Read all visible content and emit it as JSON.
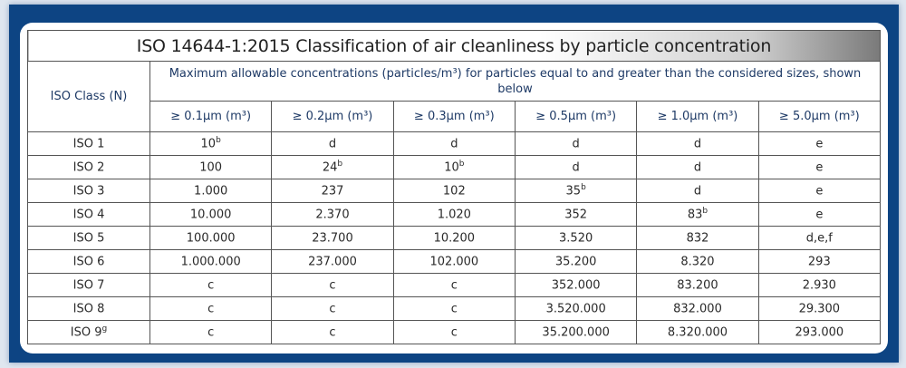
{
  "title": "ISO 14644-1:2015 Classification of air cleanliness by particle concentration",
  "class_header": "ISO Class (N)",
  "description": "Maximum allowable concentrations (particles/m³) for particles equal to and greater than the considered sizes, shown below",
  "columns": [
    "≥ 0.1µm (m³)",
    "≥ 0.2µm (m³)",
    "≥ 0.3µm (m³)",
    "≥ 0.5µm (m³)",
    "≥ 1.0µm (m³)",
    "≥ 5.0µm (m³)"
  ],
  "rows": [
    {
      "cls": "ISO 1",
      "cls_sup": "",
      "cells": [
        [
          "10",
          "b"
        ],
        [
          "d",
          ""
        ],
        [
          "d",
          ""
        ],
        [
          "d",
          ""
        ],
        [
          "d",
          ""
        ],
        [
          "e",
          ""
        ]
      ]
    },
    {
      "cls": "ISO 2",
      "cls_sup": "",
      "cells": [
        [
          "100",
          ""
        ],
        [
          "24",
          "b"
        ],
        [
          "10",
          "b"
        ],
        [
          "d",
          ""
        ],
        [
          "d",
          ""
        ],
        [
          "e",
          ""
        ]
      ]
    },
    {
      "cls": "ISO 3",
      "cls_sup": "",
      "cells": [
        [
          "1.000",
          ""
        ],
        [
          "237",
          ""
        ],
        [
          "102",
          ""
        ],
        [
          "35",
          "b"
        ],
        [
          "d",
          ""
        ],
        [
          "e",
          ""
        ]
      ]
    },
    {
      "cls": "ISO 4",
      "cls_sup": "",
      "cells": [
        [
          "10.000",
          ""
        ],
        [
          "2.370",
          ""
        ],
        [
          "1.020",
          ""
        ],
        [
          "352",
          ""
        ],
        [
          "83",
          "b"
        ],
        [
          "e",
          ""
        ]
      ]
    },
    {
      "cls": "ISO 5",
      "cls_sup": "",
      "cells": [
        [
          "100.000",
          ""
        ],
        [
          "23.700",
          ""
        ],
        [
          "10.200",
          ""
        ],
        [
          "3.520",
          ""
        ],
        [
          "832",
          ""
        ],
        [
          "d,e,f",
          ""
        ]
      ]
    },
    {
      "cls": "ISO 6",
      "cls_sup": "",
      "cells": [
        [
          "1.000.000",
          ""
        ],
        [
          "237.000",
          ""
        ],
        [
          "102.000",
          ""
        ],
        [
          "35.200",
          ""
        ],
        [
          "8.320",
          ""
        ],
        [
          "293",
          ""
        ]
      ]
    },
    {
      "cls": "ISO 7",
      "cls_sup": "",
      "cells": [
        [
          "c",
          ""
        ],
        [
          "c",
          ""
        ],
        [
          "c",
          ""
        ],
        [
          "352.000",
          ""
        ],
        [
          "83.200",
          ""
        ],
        [
          "2.930",
          ""
        ]
      ]
    },
    {
      "cls": "ISO 8",
      "cls_sup": "",
      "cells": [
        [
          "c",
          ""
        ],
        [
          "c",
          ""
        ],
        [
          "c",
          ""
        ],
        [
          "3.520.000",
          ""
        ],
        [
          "832.000",
          ""
        ],
        [
          "29.300",
          ""
        ]
      ]
    },
    {
      "cls": "ISO 9",
      "cls_sup": "g",
      "cells": [
        [
          "c",
          ""
        ],
        [
          "c",
          ""
        ],
        [
          "c",
          ""
        ],
        [
          "35.200.000",
          ""
        ],
        [
          "8.320.000",
          ""
        ],
        [
          "293.000",
          ""
        ]
      ]
    }
  ],
  "colors": {
    "frame": "#0d4483",
    "header_text": "#1e3a66",
    "border": "#555555"
  }
}
